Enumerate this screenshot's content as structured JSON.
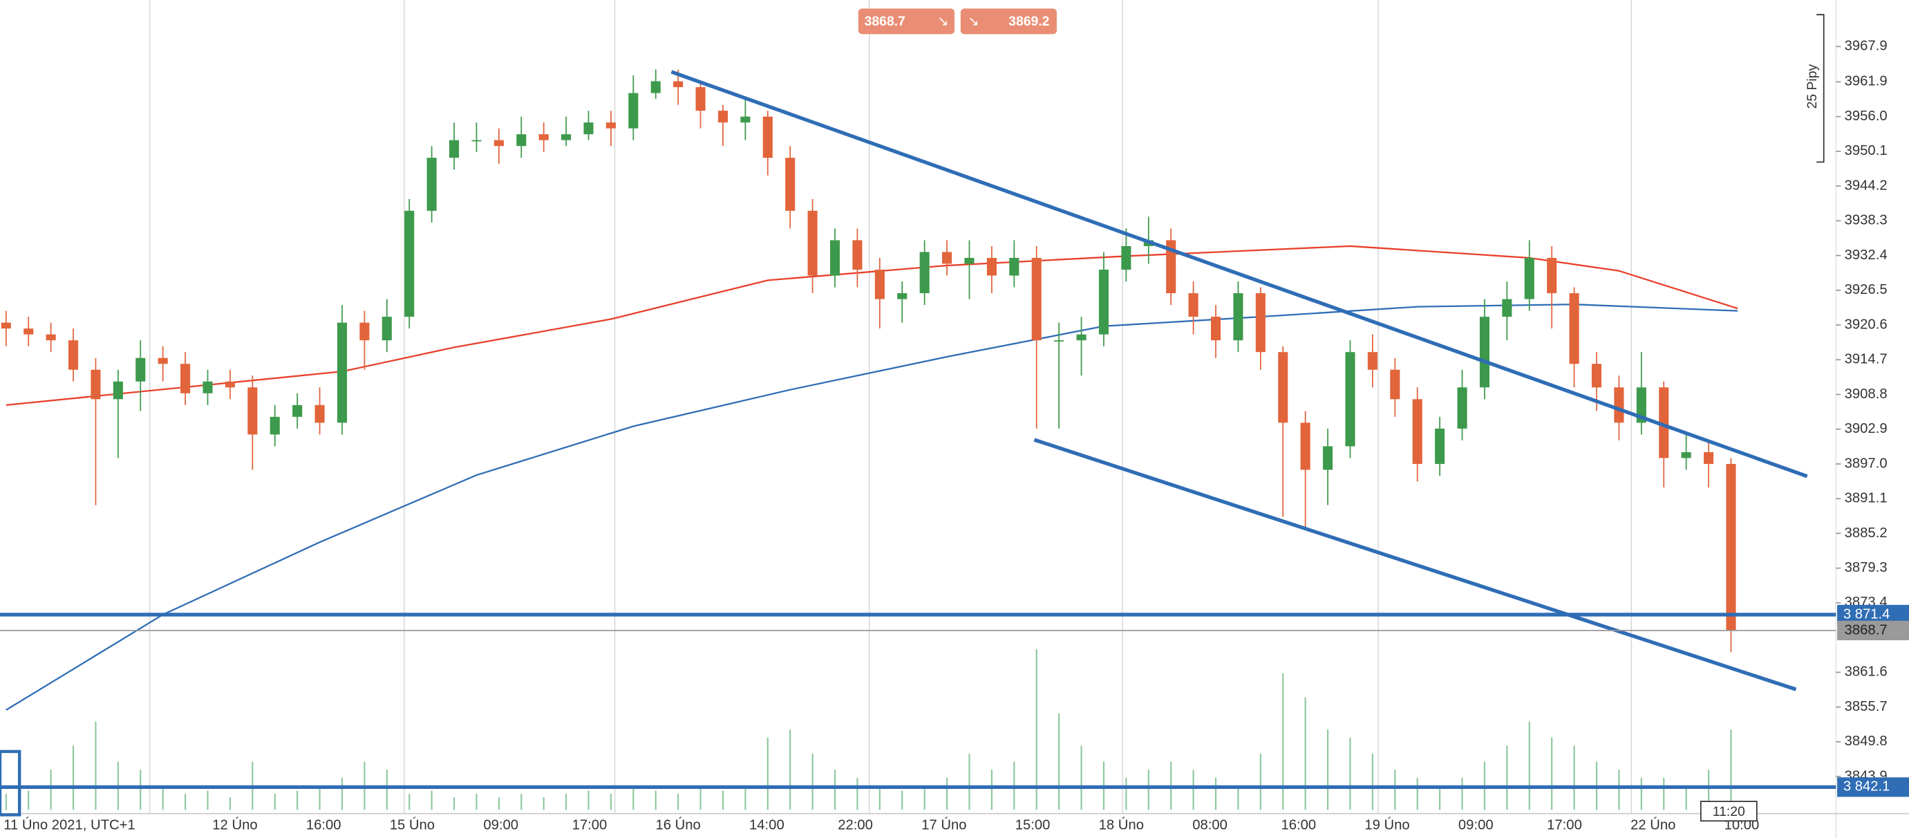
{
  "chart_data": {
    "type": "candlestick",
    "bid": 3868.7,
    "ask": 3869.2,
    "annotation": "25 Pipy",
    "cursor_time": "11:20",
    "categories": [
      "11 Úno 2021, UTC+1",
      "12 Úno",
      "16:00",
      "15 Úno",
      "09:00",
      "17:00",
      "16 Úno",
      "14:00",
      "22:00",
      "17 Úno",
      "15:00",
      "18 Úno",
      "08:00",
      "16:00",
      "19 Úno",
      "09:00",
      "17:00",
      "22 Úno",
      "10:00"
    ],
    "ylim": [
      3837.6,
      3975.8
    ],
    "yticks": [
      3967.9,
      3961.9,
      {
        "value": 3956.0,
        "label": "3956.0"
      },
      3950.1,
      3944.2,
      3938.3,
      3932.4,
      3926.5,
      3920.6,
      3914.7,
      3908.8,
      3902.9,
      {
        "value": 3897.0,
        "label": "3897.0"
      },
      3891.1,
      3885.2,
      3879.3,
      3873.4,
      3861.6,
      3855.7,
      3849.8,
      3843.9
    ],
    "up_color": "#3d9a4c",
    "down_color": "#e2643b",
    "volume_color": "#8cc79a",
    "candles": {
      "open": [
        3921,
        3920,
        3919,
        3918,
        3913,
        3908,
        3911,
        3915,
        3914,
        3909,
        3911,
        3910,
        3902,
        3905,
        3907,
        3904,
        3921,
        3918,
        3922,
        3940,
        3949,
        3952,
        3952,
        3951,
        3953,
        3952,
        3953,
        3955,
        3954,
        3960,
        3962,
        3961,
        3957,
        3955,
        3956,
        3949,
        3940,
        3929,
        3935,
        3930,
        3925,
        3926,
        3933,
        3931,
        3932,
        3929,
        3932,
        3918,
        3918,
        3919,
        3930,
        3934,
        3935,
        3926,
        3922,
        3918,
        3926,
        3916,
        3904,
        3896,
        3900,
        3916,
        3913,
        3908,
        3897,
        3903,
        3910,
        3922,
        3925,
        3932,
        3926,
        3914,
        3910,
        3904,
        3910,
        3898,
        3899,
        3897
      ],
      "high": [
        3923,
        3922,
        3921,
        3920,
        3915,
        3913,
        3918,
        3917,
        3916,
        3913,
        3913,
        3912,
        3907,
        3909,
        3910,
        3924,
        3923,
        3925,
        3942,
        3951,
        3955,
        3955,
        3954,
        3956,
        3955,
        3956,
        3957,
        3957,
        3963,
        3964,
        3964,
        3962,
        3958,
        3959,
        3957,
        3951,
        3942,
        3937,
        3937,
        3932,
        3928,
        3935,
        3935,
        3935,
        3934,
        3935,
        3934,
        3921,
        3922,
        3933,
        3937,
        3939,
        3937,
        3928,
        3924,
        3928,
        3927,
        3917,
        3906,
        3903,
        3918,
        3919,
        3915,
        3910,
        3905,
        3913,
        3925,
        3928,
        3935,
        3934,
        3927,
        3916,
        3912,
        3916,
        3911,
        3902,
        3901,
        3898
      ],
      "low": [
        3917,
        3917,
        3916,
        3911,
        3890,
        3898,
        3906,
        3911,
        3907,
        3907,
        3908,
        3896,
        3900,
        3903,
        3902,
        3902,
        3913,
        3916,
        3920,
        3938,
        3947,
        3950,
        3948,
        3949,
        3950,
        3951,
        3952,
        3951,
        3952,
        3959,
        3958,
        3954,
        3951,
        3952,
        3946,
        3937,
        3926,
        3927,
        3927,
        3920,
        3921,
        3924,
        3929,
        3925,
        3926,
        3927,
        3903,
        3903,
        3912,
        3917,
        3928,
        3931,
        3924,
        3919,
        3915,
        3916,
        3913,
        3888,
        3886,
        3890,
        3898,
        3910,
        3905,
        3894,
        3895,
        3901,
        3908,
        3918,
        3923,
        3920,
        3910,
        3906,
        3901,
        3902,
        3893,
        3896,
        3893,
        3865
      ],
      "close": [
        3920,
        3919,
        3918,
        3913,
        3908,
        3911,
        3915,
        3914,
        3909,
        3911,
        3910,
        3902,
        3905,
        3907,
        3904,
        3921,
        3918,
        3922,
        3940,
        3949,
        3952,
        3952,
        3951,
        3953,
        3952,
        3953,
        3955,
        3954,
        3960,
        3962,
        3961,
        3957,
        3955,
        3956,
        3949,
        3940,
        3929,
        3935,
        3930,
        3925,
        3926,
        3933,
        3931,
        3932,
        3929,
        3932,
        3918,
        3918,
        3919,
        3930,
        3934,
        3935,
        3926,
        3922,
        3918,
        3926,
        3916,
        3904,
        3896,
        3900,
        3916,
        3913,
        3908,
        3897,
        3903,
        3910,
        3922,
        3925,
        3932,
        3926,
        3914,
        3910,
        3904,
        3910,
        3898,
        3899,
        3897,
        3868.7
      ]
    },
    "volume": [
      10,
      12,
      25,
      40,
      55,
      30,
      25,
      15,
      10,
      12,
      8,
      30,
      10,
      12,
      15,
      20,
      30,
      25,
      10,
      12,
      8,
      10,
      8,
      10,
      8,
      10,
      12,
      10,
      15,
      12,
      10,
      15,
      12,
      15,
      45,
      50,
      35,
      25,
      20,
      15,
      12,
      15,
      20,
      35,
      25,
      30,
      100,
      60,
      40,
      30,
      20,
      25,
      30,
      25,
      20,
      15,
      35,
      85,
      70,
      50,
      45,
      35,
      25,
      20,
      15,
      20,
      30,
      40,
      55,
      45,
      40,
      30,
      25,
      20,
      20,
      15,
      25,
      50
    ],
    "moving_averages": [
      {
        "color": "#e8402a",
        "x": [
          0,
          15,
          20,
          27,
          34,
          42,
          50,
          60,
          68,
          72,
          77.3
        ],
        "values": [
          3907,
          3912.7,
          3916.8,
          3921.6,
          3928.2,
          3930.7,
          3932.3,
          3934,
          3932,
          3929.8,
          3923.4
        ]
      },
      {
        "color": "#2f6db5",
        "x": [
          0,
          7,
          14,
          21,
          28,
          35,
          42,
          49,
          56,
          63,
          70,
          77.3
        ],
        "values": [
          3855.2,
          3871.4,
          3883.7,
          3895.1,
          3903.4,
          3909.6,
          3915.2,
          3920.4,
          3922,
          3923.7,
          3924.1,
          3923
        ]
      }
    ],
    "trend_lines": [
      {
        "color": "#2f6db5",
        "x": [
          29.7,
          80.4
        ],
        "values": [
          3963.6,
          3894.9
        ]
      },
      {
        "color": "#2f6db5",
        "x": [
          45.9,
          79.9
        ],
        "values": [
          3901.1,
          3858.7
        ]
      }
    ],
    "price_lines": [
      {
        "color": "#2f6db5",
        "value": 3871.4,
        "label": "3 871.4"
      },
      {
        "color": "#2f6db5",
        "value": 3842.1,
        "label": "3 842.1"
      }
    ],
    "current_price": 3868.7
  }
}
